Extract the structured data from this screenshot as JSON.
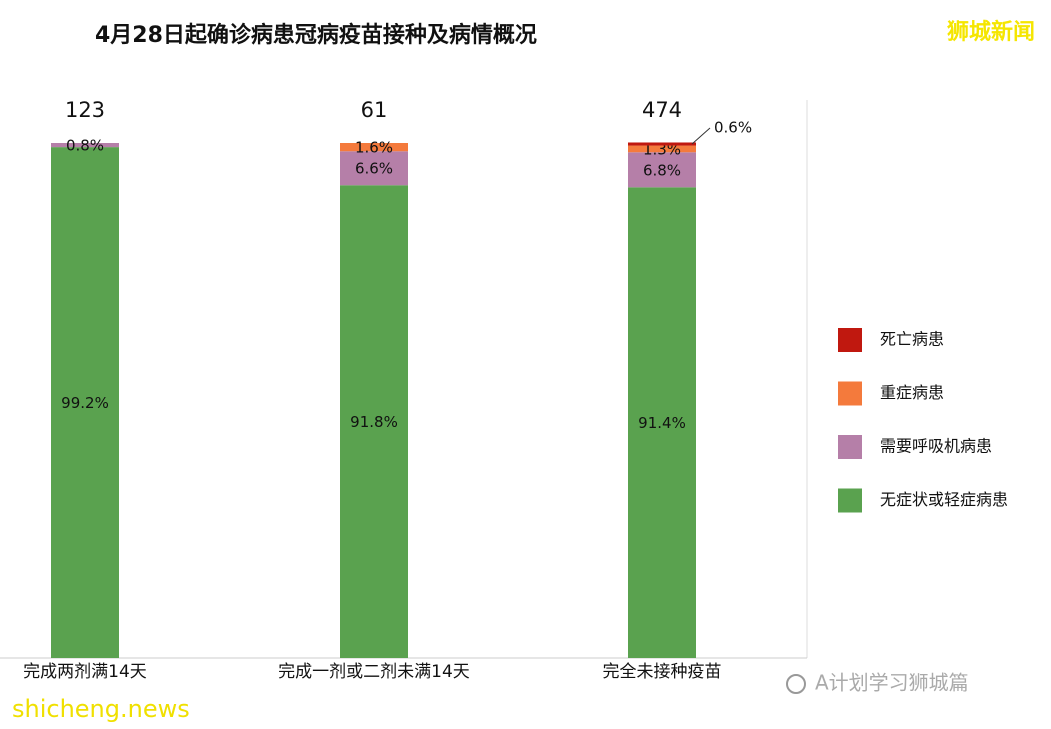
{
  "chart_data": {
    "type": "stacked_bar_percent",
    "title": "4月28日起确诊病患冠病疫苗接种及病情概况",
    "categories": [
      "完成两剂满14天",
      "完成一剂或二剂未满14天",
      "完全未接种疫苗"
    ],
    "totals": [
      123,
      61,
      474
    ],
    "ylim": [
      0,
      100
    ],
    "series": [
      {
        "name": "无症状或轻症病患",
        "color": "#5aa24f",
        "values": [
          99.2,
          91.8,
          91.4
        ],
        "value_labels": [
          "99.2%",
          "91.8%",
          "91.4%"
        ]
      },
      {
        "name": "需要呼吸机病患",
        "color": "#b57fa8",
        "values": [
          0.8,
          6.6,
          6.8
        ],
        "value_labels": [
          "0.8%",
          "6.6%",
          "6.8%"
        ]
      },
      {
        "name": "重症病患",
        "color": "#f47a3c",
        "values": [
          0,
          1.6,
          1.3
        ],
        "value_labels": [
          null,
          "1.6%",
          "1.3%"
        ]
      },
      {
        "name": "死亡病患",
        "color": "#c0180f",
        "values": [
          0,
          0,
          0.6
        ],
        "value_labels": [
          null,
          null,
          "0.6%"
        ]
      }
    ],
    "legend_position": "right"
  },
  "watermarks": {
    "top_right": "狮城新闻",
    "bottom_left": "shicheng.news",
    "bottom_right": "A计划学习狮城篇"
  }
}
